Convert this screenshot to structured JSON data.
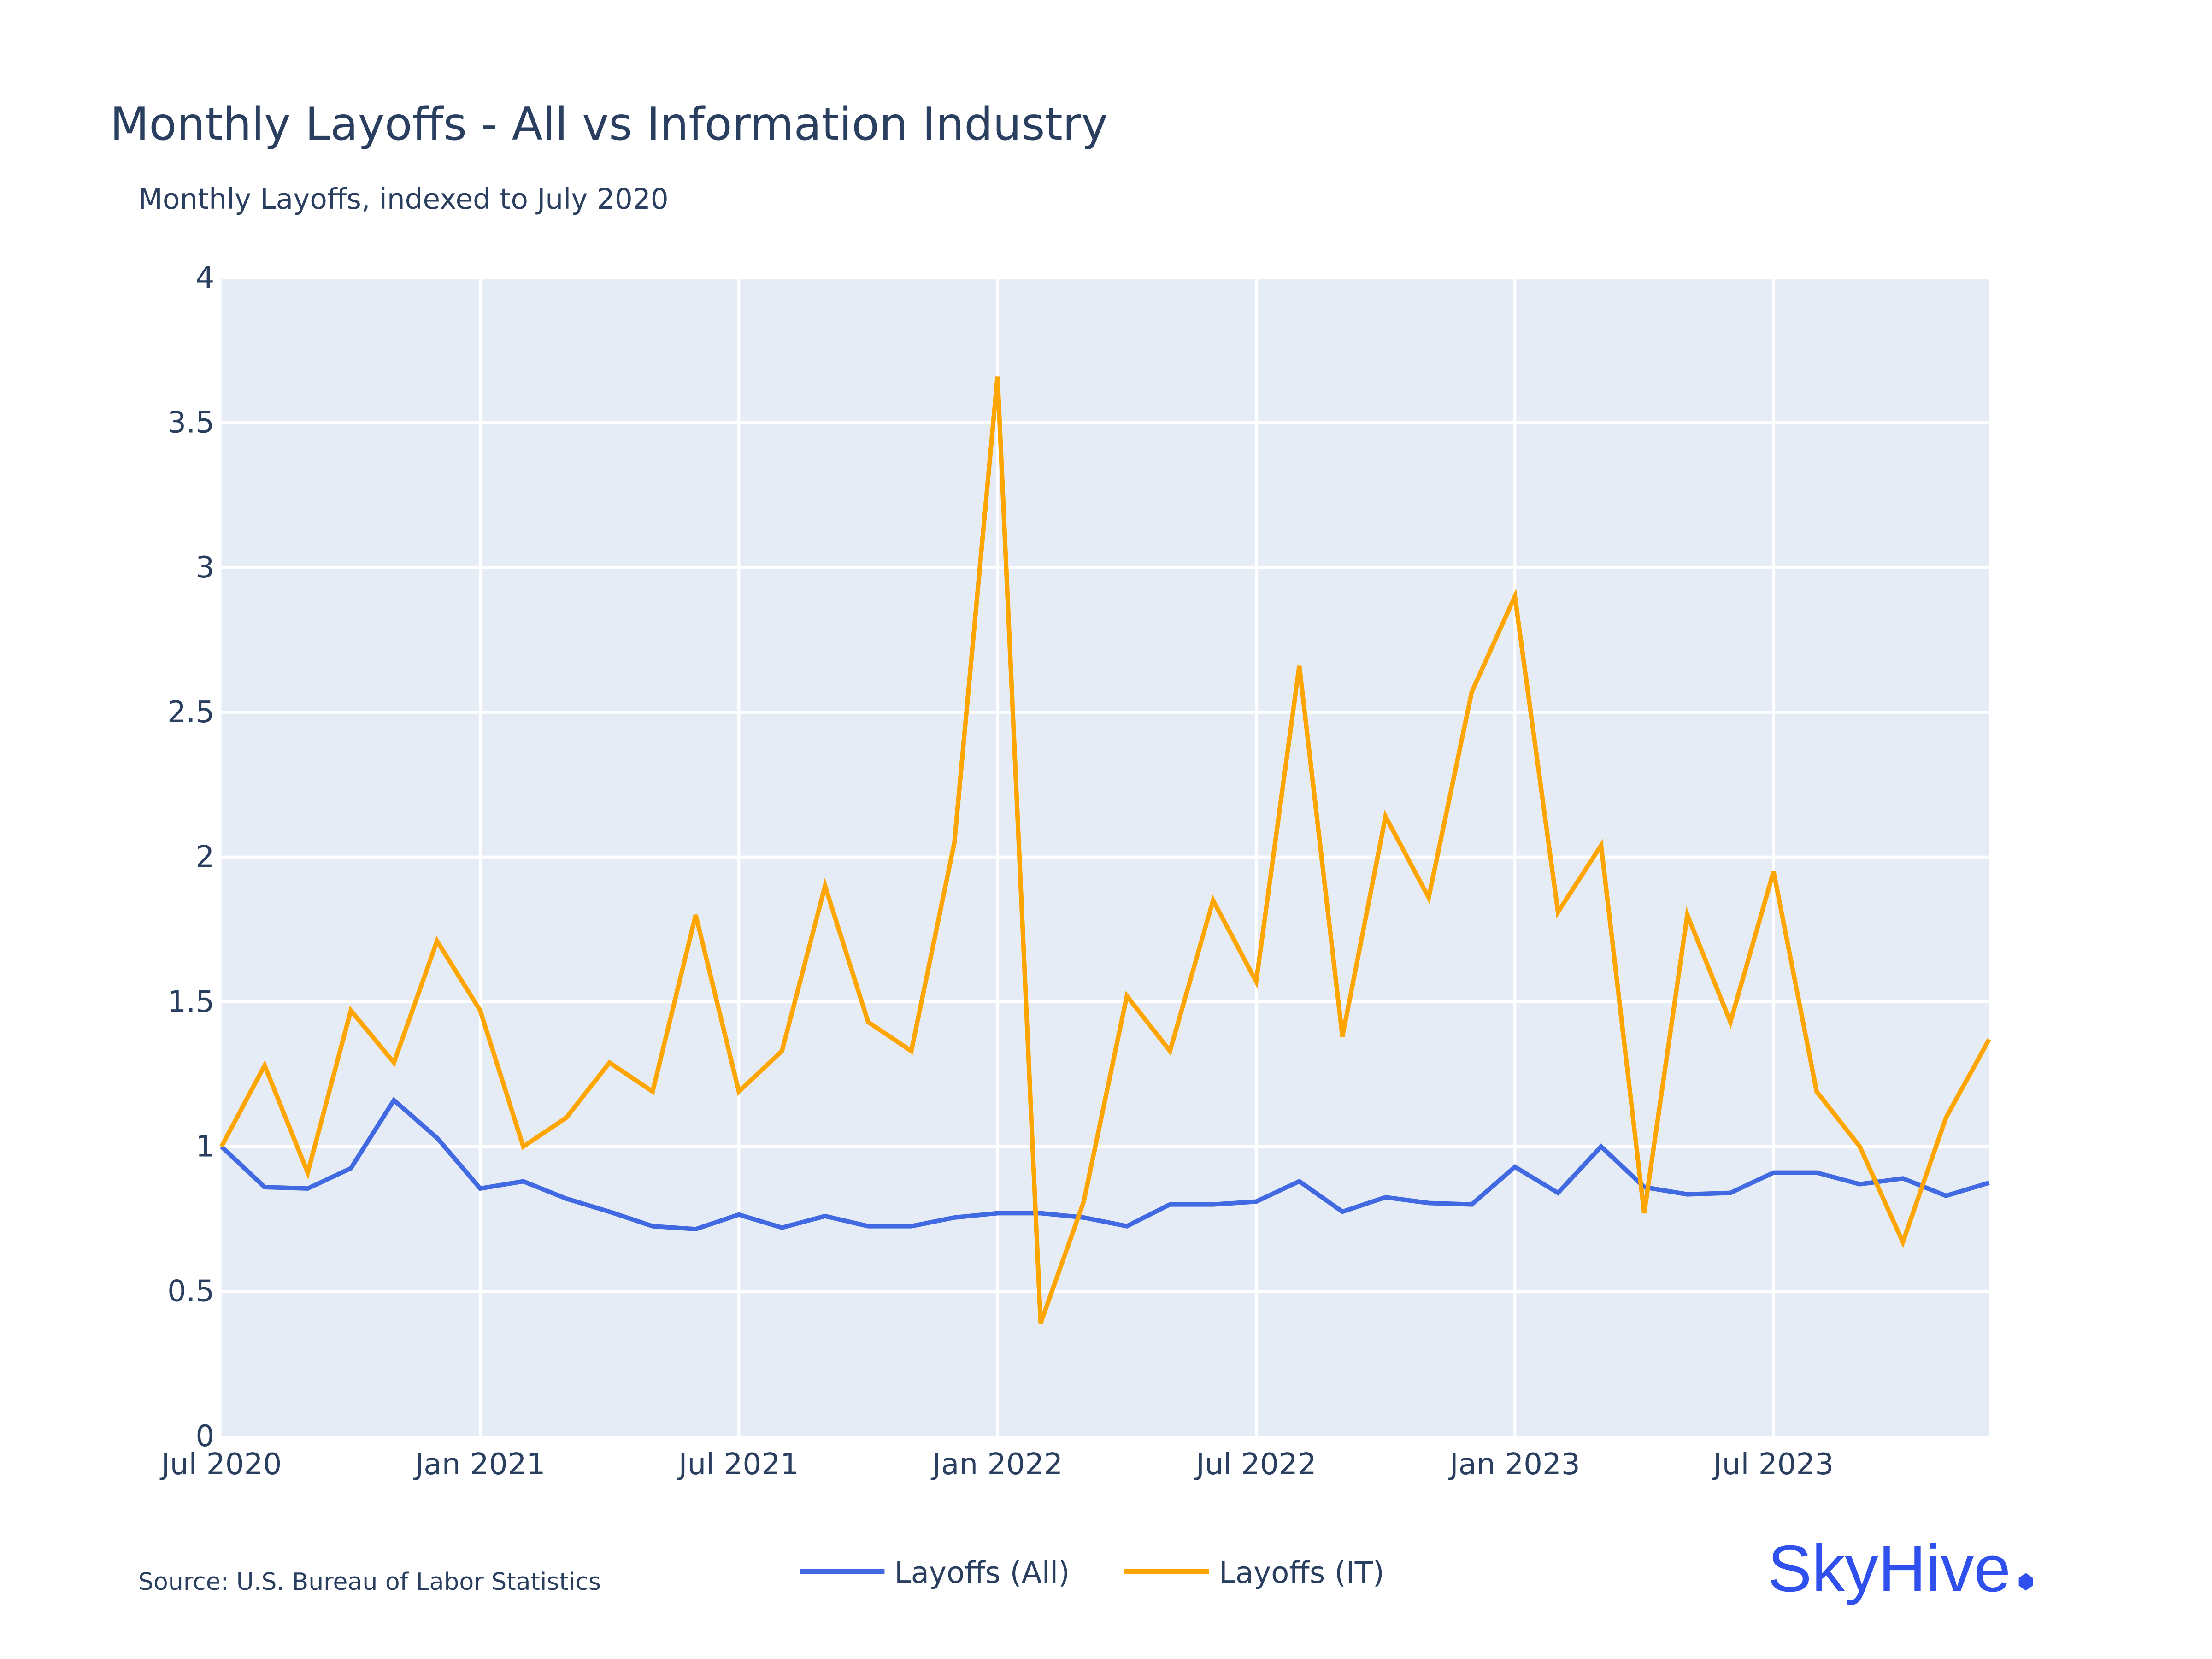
{
  "chart_data": {
    "type": "line",
    "title": "Monthly Layoffs - All vs Information Industry",
    "subtitle": "Monthly Layoffs, indexed to July 2020",
    "xlabel": "",
    "ylabel": "",
    "x": [
      "2020-07",
      "2020-08",
      "2020-09",
      "2020-10",
      "2020-11",
      "2020-12",
      "2021-01",
      "2021-02",
      "2021-03",
      "2021-04",
      "2021-05",
      "2021-06",
      "2021-07",
      "2021-08",
      "2021-09",
      "2021-10",
      "2021-11",
      "2021-12",
      "2022-01",
      "2022-02",
      "2022-03",
      "2022-04",
      "2022-05",
      "2022-06",
      "2022-07",
      "2022-08",
      "2022-09",
      "2022-10",
      "2022-11",
      "2022-12",
      "2023-01",
      "2023-02",
      "2023-03",
      "2023-04",
      "2023-05",
      "2023-06",
      "2023-07",
      "2023-08",
      "2023-09",
      "2023-10",
      "2023-11",
      "2023-12"
    ],
    "x_ticks": [
      {
        "month": "2020-07",
        "label": "Jul 2020"
      },
      {
        "month": "2021-01",
        "label": "Jan 2021"
      },
      {
        "month": "2021-07",
        "label": "Jul 2021"
      },
      {
        "month": "2022-01",
        "label": "Jan 2022"
      },
      {
        "month": "2022-07",
        "label": "Jul 2022"
      },
      {
        "month": "2023-01",
        "label": "Jan 2023"
      },
      {
        "month": "2023-07",
        "label": "Jul 2023"
      }
    ],
    "y_ticks": [
      {
        "value": 0,
        "label": "0"
      },
      {
        "value": 0.5,
        "label": "0.5"
      },
      {
        "value": 1,
        "label": "1"
      },
      {
        "value": 1.5,
        "label": "1.5"
      },
      {
        "value": 2,
        "label": "2"
      },
      {
        "value": 2.5,
        "label": "2.5"
      },
      {
        "value": 3,
        "label": "3"
      },
      {
        "value": 3.5,
        "label": "3.5"
      },
      {
        "value": 4,
        "label": "4"
      }
    ],
    "ylim": [
      0,
      4
    ],
    "grid": true,
    "legend_placement": "bottom-center",
    "series": [
      {
        "name": "Layoffs (All)",
        "color": "#4169e1",
        "values": [
          1.0,
          0.86,
          0.855,
          0.925,
          1.16,
          1.03,
          0.855,
          0.88,
          0.82,
          0.775,
          0.725,
          0.715,
          0.765,
          0.72,
          0.76,
          0.725,
          0.725,
          0.755,
          0.77,
          0.77,
          0.755,
          0.725,
          0.8,
          0.8,
          0.81,
          0.88,
          0.775,
          0.825,
          0.805,
          0.8,
          0.93,
          0.84,
          1.0,
          0.86,
          0.835,
          0.84,
          0.91,
          0.91,
          0.87,
          0.89,
          0.83,
          0.875
        ]
      },
      {
        "name": "Layoffs (IT)",
        "color": "#ffa500",
        "values": [
          1.0,
          1.28,
          0.91,
          1.47,
          1.29,
          1.71,
          1.47,
          1.0,
          1.1,
          1.29,
          1.19,
          1.8,
          1.19,
          1.33,
          1.9,
          1.43,
          1.33,
          2.05,
          3.66,
          0.39,
          0.81,
          1.52,
          1.33,
          1.85,
          1.57,
          2.66,
          1.38,
          2.14,
          1.86,
          2.57,
          2.9,
          1.81,
          2.04,
          0.77,
          1.8,
          1.43,
          1.95,
          1.19,
          1.0,
          0.67,
          1.1,
          1.37
        ]
      }
    ],
    "plot_background": "#e5ecf6"
  },
  "footer": {
    "source": "Source: U.S. Bureau of Labor Statistics",
    "logo_text": "SkyHive",
    "logo_color": "#3050ee"
  }
}
